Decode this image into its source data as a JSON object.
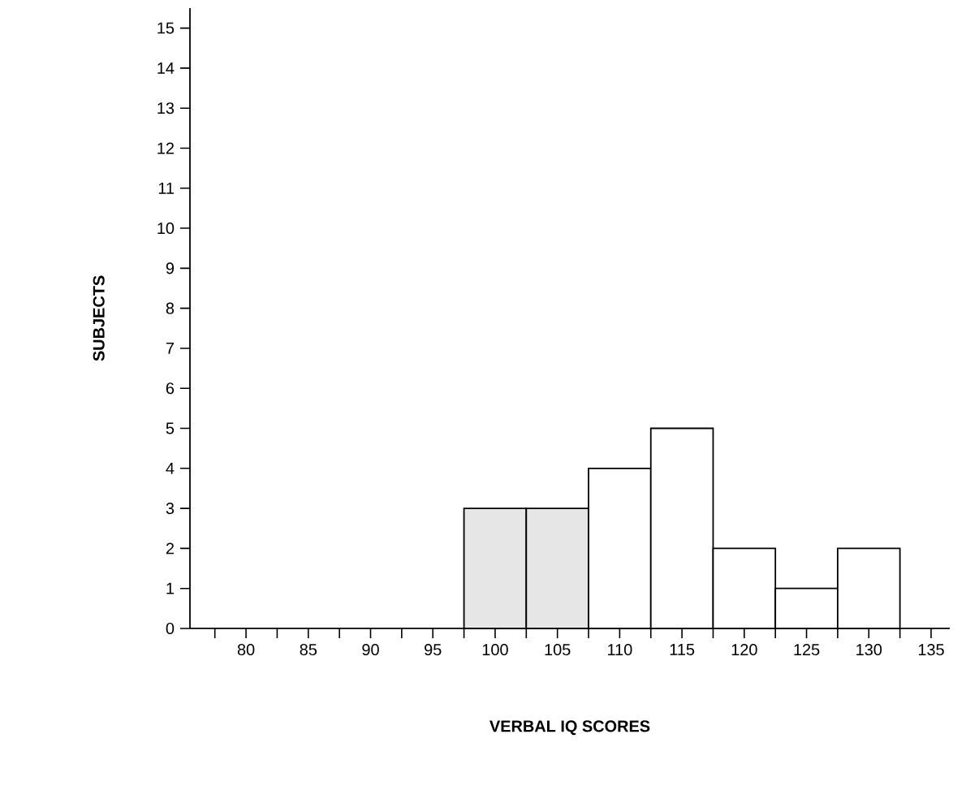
{
  "chart_data": {
    "type": "histogram",
    "xlabel": "VERBAL IQ SCORES",
    "ylabel": "SUBJECTS",
    "bins": [
      97.5,
      102.5,
      107.5,
      112.5,
      117.5,
      122.5,
      127.5,
      132.5
    ],
    "values": [
      3,
      3,
      4,
      5,
      2,
      1,
      2
    ],
    "colors": [
      "#e6e6e6",
      "#e6e6e6",
      "#ffffff",
      "#ffffff",
      "#ffffff",
      "#ffffff",
      "#ffffff"
    ],
    "xlim": [
      75.5,
      136.5
    ],
    "xticks": [
      {
        "value": 77.5,
        "label": null
      },
      80,
      {
        "value": 82.5,
        "label": null
      },
      85,
      {
        "value": 87.5,
        "label": null
      },
      90,
      {
        "value": 92.5,
        "label": null
      },
      95,
      {
        "value": 97.5,
        "label": null
      },
      100,
      {
        "value": 102.5,
        "label": null
      },
      105,
      {
        "value": 107.5,
        "label": null
      },
      110,
      {
        "value": 112.5,
        "label": null
      },
      115,
      {
        "value": 117.5,
        "label": null
      },
      120,
      {
        "value": 122.5,
        "label": null
      },
      125,
      {
        "value": 127.5,
        "label": null
      },
      130,
      {
        "value": 132.5,
        "label": null
      },
      135
    ],
    "ylim": [
      0,
      15.5
    ],
    "yticks": [
      0,
      1,
      2,
      3,
      4,
      5,
      6,
      7,
      8,
      9,
      10,
      11,
      12,
      13,
      14,
      15
    ]
  }
}
